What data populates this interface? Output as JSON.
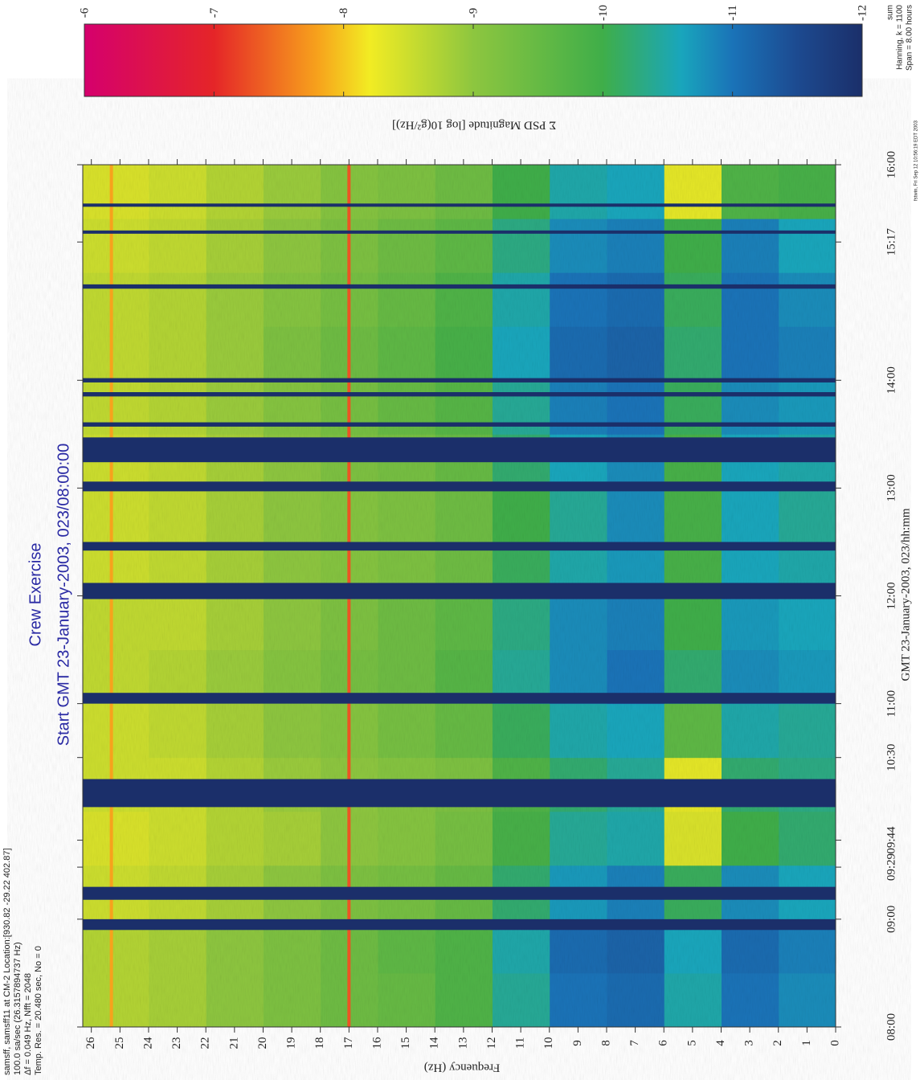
{
  "chart_data": {
    "type": "heatmap",
    "title": "Crew Exercise",
    "subtitle": "Start GMT 23-January-2003, 023/08:00:00",
    "x_label": "Frequency (Hz)",
    "y_label": "GMT 23-January-2003, 023/hh:mm",
    "xlim": [
      26.3,
      0
    ],
    "xticks": [
      0,
      1,
      2,
      3,
      4,
      5,
      6,
      7,
      8,
      9,
      10,
      11,
      12,
      13,
      14,
      15,
      16,
      17,
      18,
      19,
      20,
      21,
      22,
      23,
      24,
      25,
      26
    ],
    "ylim": [
      8,
      16
    ],
    "yticks": [
      {
        "value": 8,
        "label": "08:00"
      },
      {
        "value": 9,
        "label": "09:00"
      },
      {
        "value": 9.483,
        "label": "09:29"
      },
      {
        "value": 9.733,
        "label": "09:44"
      },
      {
        "value": 10.5,
        "label": "10:30"
      },
      {
        "value": 11,
        "label": "11:00"
      },
      {
        "value": 12,
        "label": "12:00"
      },
      {
        "value": 13,
        "label": "13:00"
      },
      {
        "value": 14,
        "label": "14:00"
      },
      {
        "value": 15.283,
        "label": "15:17"
      },
      {
        "value": 16,
        "label": "16:00"
      }
    ],
    "x_bins": [
      0,
      2,
      4,
      6,
      8,
      10,
      12,
      14,
      16,
      18,
      20,
      22,
      24,
      26.3
    ],
    "y_bins": [
      8,
      8.5,
      9,
      9.5,
      10,
      10.5,
      11,
      11.5,
      12,
      12.5,
      13,
      13.5,
      14,
      14.5,
      15,
      15.5,
      16
    ],
    "z": [
      [
        -10.8,
        -11.0,
        -10.5,
        -11.1,
        -11.0,
        -10.4,
        -9.8,
        -9.5,
        -9.4,
        -9.2,
        -9.0,
        -8.8,
        -8.7
      ],
      [
        -10.9,
        -11.1,
        -10.6,
        -11.2,
        -11.1,
        -10.5,
        -9.8,
        -9.6,
        -9.4,
        -9.2,
        -9.0,
        -8.8,
        -8.7
      ],
      [
        -10.6,
        -10.8,
        -10.1,
        -10.9,
        -10.7,
        -10.2,
        -9.5,
        -9.3,
        -9.2,
        -9.0,
        -8.8,
        -8.6,
        -8.5
      ],
      [
        -10.2,
        -10.0,
        -8.4,
        -10.5,
        -10.4,
        -9.9,
        -9.3,
        -9.1,
        -9.0,
        -8.8,
        -8.7,
        -8.5,
        -8.4
      ],
      [
        -10.3,
        -10.2,
        -8.3,
        -10.4,
        -10.2,
        -9.8,
        -9.2,
        -9.1,
        -9.0,
        -8.9,
        -8.7,
        -8.5,
        -8.5
      ],
      [
        -10.4,
        -10.5,
        -9.6,
        -10.6,
        -10.5,
        -10.1,
        -9.5,
        -9.3,
        -9.1,
        -9.0,
        -8.8,
        -8.6,
        -8.5
      ],
      [
        -10.7,
        -10.8,
        -10.2,
        -11.0,
        -10.8,
        -10.4,
        -9.7,
        -9.4,
        -9.3,
        -9.1,
        -8.9,
        -8.7,
        -8.6
      ],
      [
        -10.6,
        -10.7,
        -10.0,
        -10.9,
        -10.8,
        -10.3,
        -9.6,
        -9.4,
        -9.2,
        -9.0,
        -8.8,
        -8.6,
        -8.6
      ],
      [
        -10.5,
        -10.6,
        -9.9,
        -10.7,
        -10.5,
        -10.1,
        -9.4,
        -9.2,
        -9.1,
        -9.0,
        -8.8,
        -8.6,
        -8.5
      ],
      [
        -10.4,
        -10.6,
        -9.9,
        -10.8,
        -10.4,
        -10.0,
        -9.4,
        -9.2,
        -9.1,
        -9.0,
        -8.8,
        -8.6,
        -8.5
      ],
      [
        -10.5,
        -10.6,
        -9.9,
        -10.8,
        -10.6,
        -10.2,
        -9.5,
        -9.3,
        -9.2,
        -9.0,
        -8.8,
        -8.6,
        -8.5
      ],
      [
        -10.7,
        -10.8,
        -10.1,
        -11.0,
        -10.9,
        -10.4,
        -9.7,
        -9.5,
        -9.3,
        -9.1,
        -8.9,
        -8.7,
        -8.6
      ],
      [
        -10.9,
        -11.0,
        -10.2,
        -11.2,
        -11.1,
        -10.6,
        -9.9,
        -9.6,
        -9.4,
        -9.2,
        -8.9,
        -8.7,
        -8.6
      ],
      [
        -10.8,
        -11.0,
        -10.1,
        -11.1,
        -11.0,
        -10.5,
        -9.8,
        -9.5,
        -9.3,
        -9.1,
        -8.9,
        -8.7,
        -8.6
      ],
      [
        -10.6,
        -10.9,
        -10.0,
        -10.9,
        -10.8,
        -10.3,
        -9.6,
        -9.4,
        -9.2,
        -9.0,
        -8.8,
        -8.6,
        -8.5
      ],
      [
        -9.9,
        -9.8,
        -8.3,
        -10.6,
        -10.5,
        -10.0,
        -9.4,
        -9.2,
        -9.1,
        -8.9,
        -8.7,
        -8.5,
        -8.4
      ]
    ],
    "tones": [
      {
        "freq": 17,
        "value": -7.3
      },
      {
        "freq": 25.3,
        "value": -7.8
      }
    ],
    "data_gaps": [
      [
        8.9,
        9.0
      ],
      [
        9.18,
        9.3
      ],
      [
        10.04,
        10.3
      ],
      [
        11.0,
        11.1
      ],
      [
        11.97,
        12.12
      ],
      [
        12.42,
        12.5
      ],
      [
        12.97,
        13.06
      ],
      [
        13.24,
        13.47
      ],
      [
        13.57,
        13.61
      ],
      [
        13.85,
        13.89
      ],
      [
        13.98,
        14.02
      ],
      [
        14.85,
        14.89
      ],
      [
        15.36,
        15.39
      ],
      [
        15.61,
        15.64
      ]
    ],
    "colorbar": {
      "label": "Σ PSD Magnitude [log 10(g²/Hz)]",
      "clim": [
        -6,
        -12
      ],
      "ticks": [
        -6,
        -7,
        -8,
        -9,
        -10,
        -11,
        -12
      ],
      "colormap": [
        {
          "value": -6,
          "color": "#d5006d"
        },
        {
          "value": -7,
          "color": "#e52528"
        },
        {
          "value": -7.8,
          "color": "#f7a21c"
        },
        {
          "value": -8.2,
          "color": "#f2ec23"
        },
        {
          "value": -9,
          "color": "#8dc63f"
        },
        {
          "value": -10,
          "color": "#3fae49"
        },
        {
          "value": -10.6,
          "color": "#19a6bc"
        },
        {
          "value": -11,
          "color": "#1a73b8"
        },
        {
          "value": -11.5,
          "color": "#1c4a90"
        },
        {
          "value": -12,
          "color": "#1b2f6a"
        }
      ]
    },
    "info_lines": [
      "samsff, samsff11 at CM-2 Location:[930.82 -29.22 402.87]",
      "100.0 sa/sec (26.3157894737 Hz)",
      "Δf = 0.049 Hz, Nfft = 2048",
      "Temp. Res. = 20.480 sec, No = 0"
    ],
    "settings_lines": [
      "sum",
      "Hanning, k = 1100",
      "Span = 8.00 hours"
    ],
    "timestamp": "fstwin, Fri Sep 12 10:56:19 EDT 2003"
  }
}
